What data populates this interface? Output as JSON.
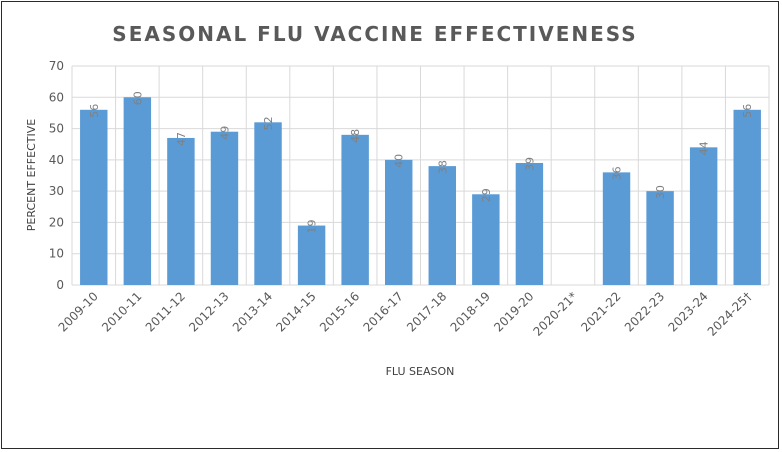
{
  "chart_data": {
    "type": "bar",
    "title": "SEASONAL FLU VACCINE EFFECTIVENESS",
    "xlabel": "FLU SEASON",
    "ylabel": "PERCENT EFFECTIVE",
    "ylim": [
      0,
      70
    ],
    "yticks": [
      0,
      10,
      20,
      30,
      40,
      50,
      60,
      70
    ],
    "grid": true,
    "bar_color": "#5b9bd5",
    "categories": [
      "2009-10",
      "2010-11",
      "2011-12",
      "2012-13",
      "2013-14",
      "2014-15",
      "2015-16",
      "2016-17",
      "2017-18",
      "2018-19",
      "2019-20",
      "2020-21*",
      "2021-22",
      "2022-23",
      "2023-24",
      "2024-25†"
    ],
    "values": [
      56,
      60,
      47,
      49,
      52,
      19,
      48,
      40,
      38,
      29,
      39,
      null,
      36,
      30,
      44,
      56
    ]
  }
}
